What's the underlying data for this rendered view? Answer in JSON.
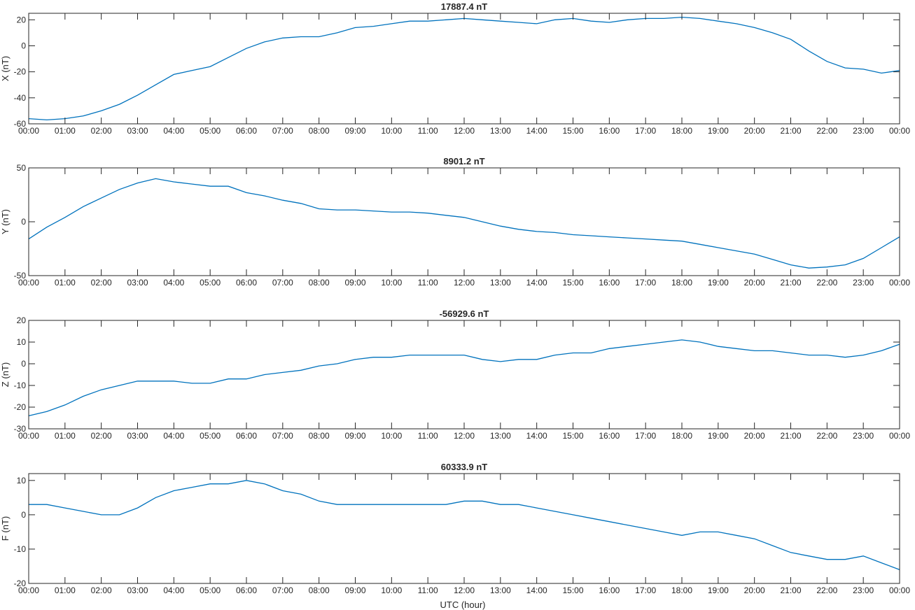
{
  "figure": {
    "xlabel": "UTC (hour)",
    "line_color": "#0072BD",
    "axis_color": "#262626"
  },
  "chart_data": [
    {
      "type": "line",
      "title": "17887.4 nT",
      "ylabel": "X (nT)",
      "xlabel": "",
      "ylim": [
        -60,
        25
      ],
      "yticks": [
        -60,
        -40,
        -20,
        0,
        20
      ],
      "xlim": [
        0,
        24
      ],
      "xticks": [
        "00:00",
        "01:00",
        "02:00",
        "03:00",
        "04:00",
        "05:00",
        "06:00",
        "07:00",
        "08:00",
        "09:00",
        "10:00",
        "11:00",
        "12:00",
        "13:00",
        "14:00",
        "15:00",
        "16:00",
        "17:00",
        "18:00",
        "19:00",
        "20:00",
        "21:00",
        "22:00",
        "23:00",
        "00:00"
      ],
      "grid": false,
      "series": [
        {
          "x": [
            0,
            0.5,
            1,
            1.5,
            2,
            2.5,
            3,
            3.5,
            4,
            4.5,
            5,
            5.5,
            6,
            6.5,
            7,
            7.5,
            8,
            8.5,
            9,
            9.5,
            10,
            10.5,
            11,
            11.5,
            12,
            12.5,
            13,
            13.5,
            14,
            14.5,
            15,
            15.5,
            16,
            16.5,
            17,
            17.5,
            18,
            18.5,
            19,
            19.5,
            20,
            20.5,
            21,
            21.5,
            22,
            22.5,
            23,
            23.5,
            24
          ],
          "values": [
            -56,
            -57,
            -56,
            -54,
            -50,
            -45,
            -38,
            -30,
            -22,
            -19,
            -16,
            -9,
            -2,
            3,
            6,
            7,
            7,
            10,
            14,
            15,
            17,
            19,
            19,
            20,
            21,
            20,
            19,
            18,
            17,
            20,
            21,
            19,
            18,
            20,
            21,
            21,
            22,
            21,
            19,
            17,
            14,
            10,
            5,
            -4,
            -12,
            -17,
            -18,
            -21,
            -19
          ]
        }
      ]
    },
    {
      "type": "line",
      "title": "8901.2 nT",
      "ylabel": "Y (nT)",
      "xlabel": "",
      "ylim": [
        -50,
        50
      ],
      "yticks": [
        -50,
        0,
        50
      ],
      "xlim": [
        0,
        24
      ],
      "xticks": [
        "00:00",
        "01:00",
        "02:00",
        "03:00",
        "04:00",
        "05:00",
        "06:00",
        "07:00",
        "08:00",
        "09:00",
        "10:00",
        "11:00",
        "12:00",
        "13:00",
        "14:00",
        "15:00",
        "16:00",
        "17:00",
        "18:00",
        "19:00",
        "20:00",
        "21:00",
        "22:00",
        "23:00",
        "00:00"
      ],
      "grid": false,
      "series": [
        {
          "x": [
            0,
            0.5,
            1,
            1.5,
            2,
            2.5,
            3,
            3.5,
            4,
            4.5,
            5,
            5.5,
            6,
            6.5,
            7,
            7.5,
            8,
            8.5,
            9,
            9.5,
            10,
            10.5,
            11,
            11.5,
            12,
            12.5,
            13,
            13.5,
            14,
            14.5,
            15,
            15.5,
            16,
            16.5,
            17,
            17.5,
            18,
            18.5,
            19,
            19.5,
            20,
            20.5,
            21,
            21.5,
            22,
            22.5,
            23,
            23.5,
            24
          ],
          "values": [
            -16,
            -5,
            4,
            14,
            22,
            30,
            36,
            40,
            37,
            35,
            33,
            33,
            27,
            24,
            20,
            17,
            12,
            11,
            11,
            10,
            9,
            9,
            8,
            6,
            4,
            0,
            -4,
            -7,
            -9,
            -10,
            -12,
            -13,
            -14,
            -15,
            -16,
            -17,
            -18,
            -21,
            -24,
            -27,
            -30,
            -35,
            -40,
            -43,
            -42,
            -40,
            -34,
            -24,
            -14
          ]
        }
      ]
    },
    {
      "type": "line",
      "title": "-56929.6 nT",
      "ylabel": "Z (nT)",
      "xlabel": "",
      "ylim": [
        -30,
        20
      ],
      "yticks": [
        -30,
        -20,
        -10,
        0,
        10,
        20
      ],
      "xlim": [
        0,
        24
      ],
      "xticks": [
        "00:00",
        "01:00",
        "02:00",
        "03:00",
        "04:00",
        "05:00",
        "06:00",
        "07:00",
        "08:00",
        "09:00",
        "10:00",
        "11:00",
        "12:00",
        "13:00",
        "14:00",
        "15:00",
        "16:00",
        "17:00",
        "18:00",
        "19:00",
        "20:00",
        "21:00",
        "22:00",
        "23:00",
        "00:00"
      ],
      "grid": false,
      "series": [
        {
          "x": [
            0,
            0.5,
            1,
            1.5,
            2,
            2.5,
            3,
            3.5,
            4,
            4.5,
            5,
            5.5,
            6,
            6.5,
            7,
            7.5,
            8,
            8.5,
            9,
            9.5,
            10,
            10.5,
            11,
            11.5,
            12,
            12.5,
            13,
            13.5,
            14,
            14.5,
            15,
            15.5,
            16,
            16.5,
            17,
            17.5,
            18,
            18.5,
            19,
            19.5,
            20,
            20.5,
            21,
            21.5,
            22,
            22.5,
            23,
            23.5,
            24
          ],
          "values": [
            -24,
            -22,
            -19,
            -15,
            -12,
            -10,
            -8,
            -8,
            -8,
            -9,
            -9,
            -7,
            -7,
            -5,
            -4,
            -3,
            -1,
            0,
            2,
            3,
            3,
            4,
            4,
            4,
            4,
            2,
            1,
            2,
            2,
            4,
            5,
            5,
            7,
            8,
            9,
            10,
            11,
            10,
            8,
            7,
            6,
            6,
            5,
            4,
            4,
            3,
            4,
            6,
            9
          ]
        }
      ]
    },
    {
      "type": "line",
      "title": "60333.9 nT",
      "ylabel": "F (nT)",
      "xlabel": "UTC (hour)",
      "ylim": [
        -20,
        12
      ],
      "yticks": [
        -20,
        -10,
        0,
        10
      ],
      "xlim": [
        0,
        24
      ],
      "xticks": [
        "00:00",
        "01:00",
        "02:00",
        "03:00",
        "04:00",
        "05:00",
        "06:00",
        "07:00",
        "08:00",
        "09:00",
        "10:00",
        "11:00",
        "12:00",
        "13:00",
        "14:00",
        "15:00",
        "16:00",
        "17:00",
        "18:00",
        "19:00",
        "20:00",
        "21:00",
        "22:00",
        "23:00",
        "00:00"
      ],
      "grid": false,
      "series": [
        {
          "x": [
            0,
            0.5,
            1,
            1.5,
            2,
            2.5,
            3,
            3.5,
            4,
            4.5,
            5,
            5.5,
            6,
            6.5,
            7,
            7.5,
            8,
            8.5,
            9,
            9.5,
            10,
            10.5,
            11,
            11.5,
            12,
            12.5,
            13,
            13.5,
            14,
            14.5,
            15,
            15.5,
            16,
            16.5,
            17,
            17.5,
            18,
            18.5,
            19,
            19.5,
            20,
            20.5,
            21,
            21.5,
            22,
            22.5,
            23,
            23.5,
            24
          ],
          "values": [
            3,
            3,
            2,
            1,
            0,
            0,
            2,
            5,
            7,
            8,
            9,
            9,
            10,
            9,
            7,
            6,
            4,
            3,
            3,
            3,
            3,
            3,
            3,
            3,
            4,
            4,
            3,
            3,
            2,
            1,
            0,
            -1,
            -2,
            -3,
            -4,
            -5,
            -6,
            -5,
            -5,
            -6,
            -7,
            -9,
            -11,
            -12,
            -13,
            -13,
            -12,
            -14,
            -16
          ]
        }
      ]
    }
  ]
}
